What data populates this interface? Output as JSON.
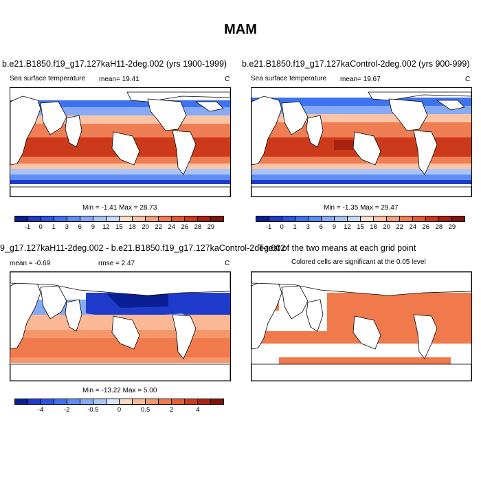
{
  "main_title": "MAM",
  "panels": {
    "top_left": {
      "title": "b.e21.B1850.f19_g17.127kaH11-2deg.002 (yrs 1900-1999)",
      "variable": "Sea surface temperature",
      "mean_label": "mean=  19.41",
      "units": "C",
      "minmax": "Min =  -1.41 Max =  28.73"
    },
    "top_right": {
      "title": "b.e21.B1850.f19_g17.127kaControl-2deg.002 (yrs 900-999)",
      "variable": "Sea surface temperature",
      "mean_label": "mean=  19.67",
      "units": "C",
      "minmax": "Min =  -1.35 Max =  29.47"
    },
    "bottom_left": {
      "title": "9_g17.127kaH11-2deg.002 - b.e21.B1850.f19_g17.127kaControl-2deg.002",
      "mean_label": "mean =  -0.69",
      "rmse_label": "rmse =   2.47",
      "units": "C",
      "minmax": "Min = -13.22 Max =   5.00"
    },
    "bottom_right": {
      "title": "T-test of the two means at each grid point",
      "subtitle": "Colored cells are significant at the 0.05 level"
    }
  },
  "colorbars": {
    "sst": {
      "ticks": [
        "-1",
        "0",
        "1",
        "3",
        "6",
        "9",
        "12",
        "15",
        "18",
        "20",
        "22",
        "24",
        "26",
        "28",
        "29"
      ],
      "colors": [
        "#0a1f94",
        "#1f3bcc",
        "#2a55e0",
        "#3f72ef",
        "#5e8df4",
        "#86aaf6",
        "#aac4f8",
        "#cad9fb",
        "#fde0cf",
        "#fbc4a7",
        "#f6a17b",
        "#f07e55",
        "#e55a33",
        "#cc3a1b",
        "#a82211",
        "#7f1408"
      ]
    },
    "diff": {
      "ticks": [
        "-4",
        "-2",
        "-0.5",
        "0",
        "0.5",
        "2",
        "4"
      ],
      "tick_slots": [
        2,
        4,
        6,
        8,
        10,
        12,
        14
      ],
      "colors": [
        "#0a1f94",
        "#1f3bcc",
        "#2a55e0",
        "#3f72ef",
        "#5e8df4",
        "#86aaf6",
        "#aac4f8",
        "#d8e4fb",
        "#fdd8c4",
        "#fbb896",
        "#f6966b",
        "#f07a4c",
        "#e55e33",
        "#cc3a1b",
        "#a82211",
        "#7f1408"
      ]
    }
  }
}
